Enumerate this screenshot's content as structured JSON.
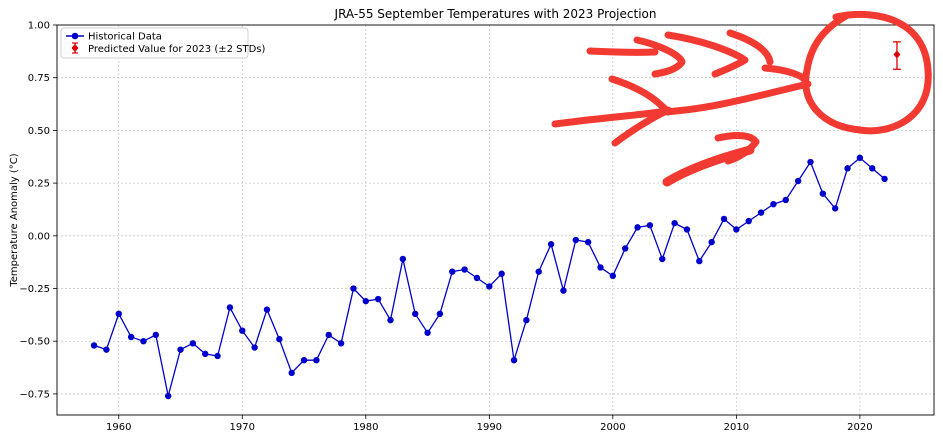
{
  "chart_data": {
    "type": "line",
    "title": "JRA-55 September Temperatures with 2023 Projection",
    "xlabel": "",
    "ylabel": "Temperature Anomaly (°C)",
    "xlim": [
      1955,
      2026
    ],
    "ylim": [
      -0.85,
      1.0
    ],
    "xticks": [
      1960,
      1970,
      1980,
      1990,
      2000,
      2010,
      2020
    ],
    "yticks": [
      -0.75,
      -0.5,
      -0.25,
      0.0,
      0.25,
      0.5,
      0.75,
      1.0
    ],
    "xtick_labels": [
      "1960",
      "1970",
      "1980",
      "1990",
      "2000",
      "2010",
      "2020"
    ],
    "ytick_labels": [
      "−0.75",
      "−0.50",
      "−0.25",
      "0.00",
      "0.25",
      "0.50",
      "0.75",
      "1.00"
    ],
    "grid": true,
    "legend_position": "top-left",
    "series": [
      {
        "name": "Historical Data",
        "color": "#0000cc",
        "marker": "circle",
        "x": [
          1958,
          1959,
          1960,
          1961,
          1962,
          1963,
          1964,
          1965,
          1966,
          1967,
          1968,
          1969,
          1970,
          1971,
          1972,
          1973,
          1974,
          1975,
          1976,
          1977,
          1978,
          1979,
          1980,
          1981,
          1982,
          1983,
          1984,
          1985,
          1986,
          1987,
          1988,
          1989,
          1990,
          1991,
          1992,
          1993,
          1994,
          1995,
          1996,
          1997,
          1998,
          1999,
          2000,
          2001,
          2002,
          2003,
          2004,
          2005,
          2006,
          2007,
          2008,
          2009,
          2010,
          2011,
          2012,
          2013,
          2014,
          2015,
          2016,
          2017,
          2018,
          2019,
          2020,
          2021,
          2022
        ],
        "y": [
          -0.52,
          -0.54,
          -0.37,
          -0.48,
          -0.5,
          -0.47,
          -0.76,
          -0.54,
          -0.51,
          -0.56,
          -0.57,
          -0.34,
          -0.45,
          -0.53,
          -0.35,
          -0.49,
          -0.65,
          -0.59,
          -0.59,
          -0.47,
          -0.51,
          -0.25,
          -0.31,
          -0.3,
          -0.4,
          -0.11,
          -0.37,
          -0.46,
          -0.37,
          -0.17,
          -0.16,
          -0.2,
          -0.24,
          -0.18,
          -0.59,
          -0.4,
          -0.17,
          -0.04,
          -0.26,
          -0.02,
          -0.03,
          -0.15,
          -0.19,
          -0.06,
          0.04,
          0.05,
          -0.11,
          0.06,
          0.03,
          -0.12,
          -0.03,
          0.08,
          0.03,
          0.07,
          0.11,
          0.15,
          0.17,
          0.26,
          0.35,
          0.2,
          0.13,
          0.32,
          0.37,
          0.32,
          0.27
        ]
      },
      {
        "name": "Predicted Value for 2023 (±2 STDs)",
        "color": "#dd0000",
        "marker": "diamond",
        "x": [
          2023
        ],
        "y": [
          0.86
        ],
        "error_low": [
          0.79
        ],
        "error_high": [
          0.92
        ]
      }
    ],
    "annotation_color": "#f23a32"
  }
}
